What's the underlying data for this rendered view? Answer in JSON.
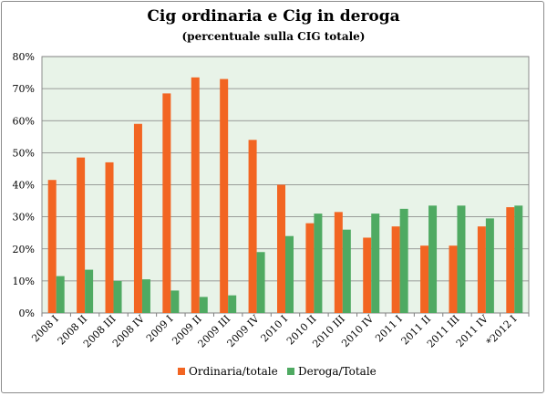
{
  "colors": {
    "plot_background": "#e8f3e8",
    "ordinaria": "#f26522",
    "deroga": "#4faa62",
    "grid": "#7f7f7f"
  },
  "chart_data": {
    "type": "bar",
    "title": "Cig ordinaria e Cig in deroga",
    "subtitle": "(percentuale sulla CIG totale)",
    "categories": [
      "2008 I",
      "2008 II",
      "2008 III",
      "2008 IV",
      "2009 I",
      "2009 II",
      "2009 III",
      "2009 IV",
      "2010 I",
      "2010 II",
      "2010 III",
      "2010 IV",
      "2011 I",
      "2011 II",
      "2011 III",
      "2011 IV",
      "*2012 I"
    ],
    "series": [
      {
        "name": "Ordinaria/totale",
        "values": [
          41.5,
          48.5,
          47,
          59,
          68.5,
          73.5,
          73,
          54,
          40,
          28,
          31.5,
          23.5,
          27,
          21,
          21,
          27,
          33
        ]
      },
      {
        "name": "Deroga/Totale",
        "values": [
          11.5,
          13.5,
          10,
          10.5,
          7,
          5,
          5.5,
          19,
          24,
          31,
          26,
          31,
          32.5,
          33.5,
          33.5,
          29.5,
          33.5
        ]
      }
    ],
    "yticks": [
      "0%",
      "10%",
      "20%",
      "30%",
      "40%",
      "50%",
      "60%",
      "70%",
      "80%"
    ],
    "ylim": [
      0,
      80
    ],
    "grid": true,
    "legend_position": "bottom"
  }
}
